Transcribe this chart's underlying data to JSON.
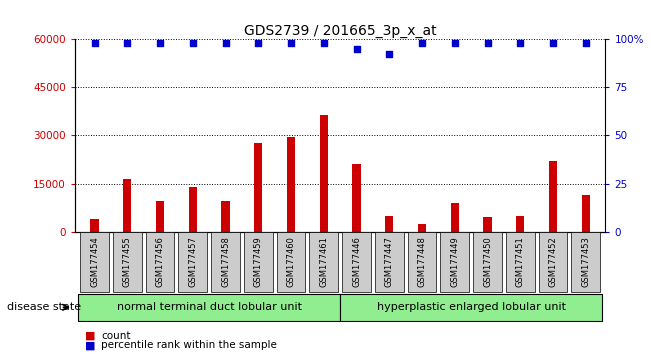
{
  "title": "GDS2739 / 201665_3p_x_at",
  "samples": [
    "GSM177454",
    "GSM177455",
    "GSM177456",
    "GSM177457",
    "GSM177458",
    "GSM177459",
    "GSM177460",
    "GSM177461",
    "GSM177446",
    "GSM177447",
    "GSM177448",
    "GSM177449",
    "GSM177450",
    "GSM177451",
    "GSM177452",
    "GSM177453"
  ],
  "counts": [
    4000,
    16500,
    9500,
    14000,
    9500,
    27500,
    29500,
    36500,
    21000,
    5000,
    2500,
    9000,
    4500,
    5000,
    22000,
    11500
  ],
  "percentile": [
    98,
    98,
    98,
    98,
    98,
    98,
    98,
    98,
    95,
    92,
    98,
    98,
    98,
    98,
    98,
    98
  ],
  "group1_label": "normal terminal duct lobular unit",
  "group2_label": "hyperplastic enlarged lobular unit",
  "group1_count": 8,
  "group2_count": 8,
  "ylim_left": [
    0,
    60000
  ],
  "yticks_left": [
    0,
    15000,
    30000,
    45000,
    60000
  ],
  "ytick_labels_left": [
    "0",
    "15000",
    "30000",
    "45000",
    "60000"
  ],
  "ylim_right": [
    0,
    100
  ],
  "yticks_right": [
    0,
    25,
    50,
    75,
    100
  ],
  "ytick_labels_right": [
    "0",
    "25",
    "50",
    "75",
    "100%"
  ],
  "bar_color": "#cc0000",
  "dot_color": "#0000cc",
  "bg_color": "#ffffff",
  "grid_color": "#000000",
  "group1_bg": "#90ee90",
  "group2_bg": "#90ee90",
  "xticklabel_bg": "#cccccc",
  "legend_count_color": "#cc0000",
  "legend_pct_color": "#0000cc",
  "disease_state_label": "disease state",
  "legend_count_label": "count",
  "legend_pct_label": "percentile rank within the sample",
  "title_fontsize": 10,
  "tick_fontsize": 7.5,
  "label_fontsize": 8
}
